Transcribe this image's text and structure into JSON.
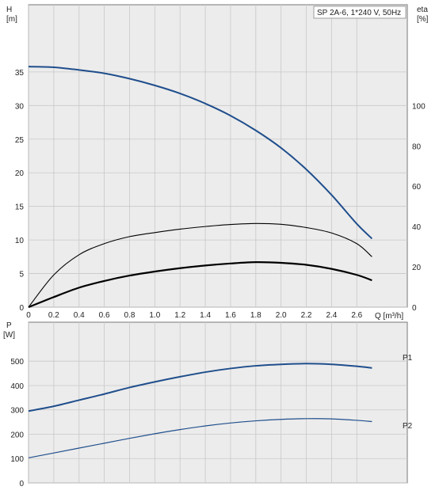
{
  "chart_data": [
    {
      "type": "line",
      "panel": "performance",
      "annotation": "SP 2A-6, 1*240 V, 50Hz",
      "xlabel": "Q [m³/h]",
      "xlim": [
        0,
        3.0
      ],
      "x_ticks": [
        0,
        0.2,
        0.4,
        0.6,
        0.8,
        1.0,
        1.2,
        1.4,
        1.6,
        1.8,
        2.0,
        2.2,
        2.4,
        2.6
      ],
      "x_tick_labels": [
        "0",
        "0.2",
        "0.4",
        "0.6",
        "0.8",
        "1.0",
        "1.2",
        "1.4",
        "1.6",
        "1.8",
        "2.0",
        "2.2",
        "2.4",
        "2.6"
      ],
      "left_axis": {
        "label": "H",
        "unit": "[m]",
        "ylim": [
          0,
          45
        ],
        "ticks": [
          0,
          5,
          10,
          15,
          20,
          25,
          30,
          35
        ],
        "tick_labels": [
          "0",
          "5",
          "10",
          "15",
          "20",
          "25",
          "30",
          "35"
        ]
      },
      "right_axis": {
        "label": "eta",
        "unit": "[%]",
        "ylim": [
          0,
          150
        ],
        "ticks": [
          0,
          20,
          40,
          60,
          80,
          100
        ],
        "tick_labels": [
          "0",
          "20",
          "40",
          "60",
          "80",
          "100"
        ]
      },
      "grid": true,
      "series": [
        {
          "axis": "left",
          "color": "#1f4e8c",
          "x": [
            0,
            0.2,
            0.4,
            0.6,
            0.8,
            1.0,
            1.2,
            1.4,
            1.6,
            1.8,
            2.0,
            2.2,
            2.4,
            2.6,
            2.72
          ],
          "values": [
            35.8,
            35.7,
            35.3,
            34.8,
            34.0,
            33.0,
            31.8,
            30.3,
            28.5,
            26.3,
            23.7,
            20.5,
            16.7,
            12.4,
            10.2
          ]
        },
        {
          "axis": "right",
          "color": "#000000",
          "x": [
            0,
            0.2,
            0.4,
            0.6,
            0.8,
            1.0,
            1.2,
            1.4,
            1.6,
            1.8,
            2.0,
            2.2,
            2.4,
            2.6,
            2.72
          ],
          "values": [
            0,
            16,
            26,
            31.5,
            35,
            37,
            38.7,
            40,
            41,
            41.5,
            41.1,
            39.5,
            36.8,
            31.5,
            25
          ]
        },
        {
          "axis": "left",
          "color": "#000000",
          "x": [
            0,
            0.2,
            0.4,
            0.6,
            0.8,
            1.0,
            1.2,
            1.4,
            1.6,
            1.8,
            2.0,
            2.2,
            2.4,
            2.6,
            2.72
          ],
          "values": [
            0,
            1.5,
            2.9,
            3.9,
            4.7,
            5.3,
            5.8,
            6.2,
            6.5,
            6.7,
            6.6,
            6.3,
            5.7,
            4.8,
            4.0
          ]
        }
      ]
    },
    {
      "type": "line",
      "panel": "power",
      "xlim": [
        0,
        3.0
      ],
      "x_ticks": [
        0,
        0.2,
        0.4,
        0.6,
        0.8,
        1.0,
        1.2,
        1.4,
        1.6,
        1.8,
        2.0,
        2.2,
        2.4,
        2.6
      ],
      "left_axis": {
        "label": "P",
        "unit": "[W]",
        "ylim": [
          0,
          660
        ],
        "ticks": [
          0,
          100,
          200,
          300,
          400,
          500
        ],
        "tick_labels": [
          "0",
          "100",
          "200",
          "300",
          "400",
          "500"
        ]
      },
      "grid": true,
      "series": [
        {
          "name": "P1",
          "color": "#1f4e8c",
          "x": [
            0,
            0.2,
            0.4,
            0.6,
            0.8,
            1.0,
            1.2,
            1.4,
            1.6,
            1.8,
            2.0,
            2.2,
            2.4,
            2.6,
            2.72
          ],
          "values": [
            295,
            315,
            340,
            365,
            392,
            415,
            436,
            455,
            470,
            481,
            487,
            490,
            487,
            479,
            472
          ]
        },
        {
          "name": "P2",
          "color": "#1f4e8c",
          "x": [
            0,
            0.2,
            0.4,
            0.6,
            0.8,
            1.0,
            1.2,
            1.4,
            1.6,
            1.8,
            2.0,
            2.2,
            2.4,
            2.6,
            2.72
          ],
          "values": [
            103,
            123,
            143,
            163,
            183,
            202,
            219,
            234,
            246,
            255,
            261,
            264,
            263,
            257,
            252
          ]
        }
      ]
    }
  ]
}
